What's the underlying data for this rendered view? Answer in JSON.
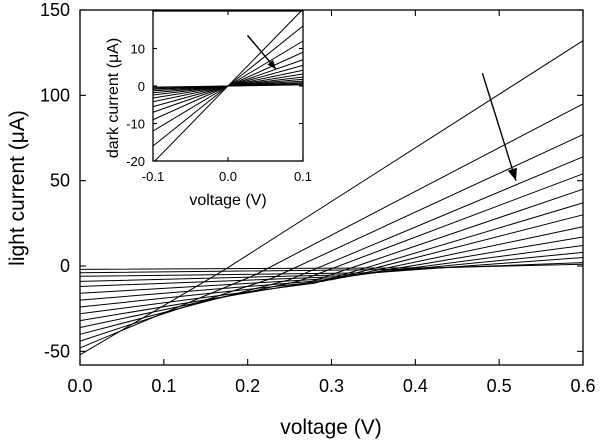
{
  "chart_data": [
    {
      "id": "main",
      "type": "line",
      "xlabel": "voltage (V)",
      "ylabel": "light current (μA)",
      "xlim": [
        0.0,
        0.6
      ],
      "ylim": [
        -58,
        150
      ],
      "xticks": [
        0.0,
        0.1,
        0.2,
        0.3,
        0.4,
        0.5,
        0.6
      ],
      "xtick_labels": [
        "0.0",
        "0.1",
        "0.2",
        "0.3",
        "0.4",
        "0.5",
        "0.6"
      ],
      "yticks": [
        -50,
        0,
        50,
        100,
        150
      ],
      "ytick_labels": [
        "-50",
        "0",
        "50",
        "100",
        "150"
      ],
      "grid": false,
      "series": [
        {
          "x": [
            0.0,
            0.17,
            0.6
          ],
          "y": [
            -52,
            -3,
            132
          ]
        },
        {
          "x": [
            0.0,
            0.21,
            0.6
          ],
          "y": [
            -48,
            -5,
            95
          ]
        },
        {
          "x": [
            0.0,
            0.23,
            0.6
          ],
          "y": [
            -44,
            -7,
            77
          ]
        },
        {
          "x": [
            0.0,
            0.25,
            0.6
          ],
          "y": [
            -40,
            -8,
            64
          ]
        },
        {
          "x": [
            0.0,
            0.26,
            0.6
          ],
          "y": [
            -36,
            -9,
            54
          ]
        },
        {
          "x": [
            0.0,
            0.27,
            0.6
          ],
          "y": [
            -32,
            -10,
            45
          ]
        },
        {
          "x": [
            0.0,
            0.28,
            0.6
          ],
          "y": [
            -28,
            -10,
            37
          ]
        },
        {
          "x": [
            0.0,
            0.29,
            0.6
          ],
          "y": [
            -24,
            -9,
            30
          ]
        },
        {
          "x": [
            0.0,
            0.3,
            0.6
          ],
          "y": [
            -20,
            -8,
            23
          ]
        },
        {
          "x": [
            0.0,
            0.31,
            0.6
          ],
          "y": [
            -16,
            -7,
            17
          ]
        },
        {
          "x": [
            0.0,
            0.32,
            0.6
          ],
          "y": [
            -12,
            -6,
            12
          ]
        },
        {
          "x": [
            0.0,
            0.33,
            0.6
          ],
          "y": [
            -9,
            -5,
            8
          ]
        },
        {
          "x": [
            0.0,
            0.35,
            0.6
          ],
          "y": [
            -6,
            -4,
            5
          ]
        },
        {
          "x": [
            0.0,
            0.38,
            0.6
          ],
          "y": [
            -4,
            -2,
            2
          ]
        },
        {
          "x": [
            0.0,
            0.42,
            0.6
          ],
          "y": [
            -2,
            -1,
            1
          ]
        }
      ],
      "annotation_arrow": {
        "from": [
          0.48,
          113
        ],
        "to": [
          0.52,
          50
        ]
      }
    },
    {
      "id": "inset",
      "type": "line",
      "xlabel": "voltage (V)",
      "ylabel": "dark current (μA)",
      "xlim": [
        -0.1,
        0.1
      ],
      "ylim": [
        -20,
        20
      ],
      "xticks": [
        -0.1,
        0.0,
        0.1
      ],
      "xtick_labels": [
        "-0.1",
        "0.0",
        "0.1"
      ],
      "yticks": [
        -20,
        -10,
        0,
        10
      ],
      "ytick_labels": [
        "-20",
        "-10",
        "0",
        "10"
      ],
      "grid": false,
      "series_slopes_uA_per_V": [
        205,
        160,
        120,
        90,
        70,
        55,
        42,
        32,
        24,
        18,
        13,
        9,
        6,
        3
      ],
      "annotation_arrow": {
        "from": [
          0.026,
          13.5
        ],
        "to": [
          0.064,
          4.5
        ]
      }
    }
  ],
  "colors": {
    "line": "#000000",
    "background": "#ffffff"
  }
}
